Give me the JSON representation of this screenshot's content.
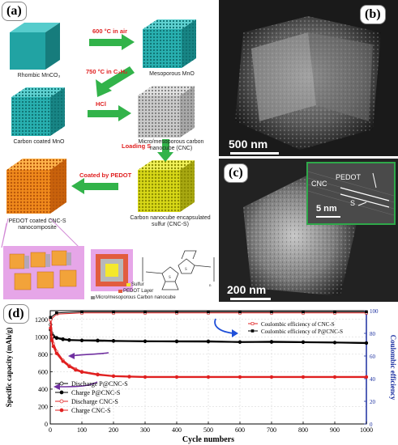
{
  "panels": {
    "a": {
      "label": "(a)",
      "cubes": [
        {
          "label": "Rhombic MnCO₃",
          "color": "#2aa6a6"
        },
        {
          "label": "Mesoporous MnO",
          "color": "#2bb3b3"
        },
        {
          "label": "Carbon coated MnO",
          "color": "#2bb3b3"
        },
        {
          "label": "Micro/mesoporous carbon nanocube (CNC)",
          "color": "#bdbdbd"
        },
        {
          "label": "PEDOT coated CNC-S nanocomposite",
          "color": "#f08a1c"
        },
        {
          "label": "Carbon nanocube encapsulated sulfur (CNC-S)",
          "color": "#d8d818"
        }
      ],
      "steps": [
        "600 °C in air",
        "750 °C in C₂H₂",
        "HCl",
        "Loading S",
        "Coated by PEDOT"
      ],
      "legend": [
        "Sulfur",
        "PEDOT Layer",
        "Micro/mesoporous Carbon nanocube"
      ]
    },
    "b": {
      "label": "(b)",
      "scale": "500 nm"
    },
    "c": {
      "label": "(c)",
      "scale": "200 nm",
      "inset_scale": "5 nm",
      "inset_labels": [
        "CNC",
        "PEDOT",
        "S"
      ]
    },
    "d": {
      "label": "(d)"
    }
  },
  "chart_data": {
    "type": "scatter",
    "xlabel": "Cycle numbers",
    "ylabel": "Specific capacity (mAh/g)",
    "y2label": "Coulombic efficiency",
    "xlim": [
      0,
      1000
    ],
    "ylim": [
      0,
      1300
    ],
    "y2lim": [
      0,
      100
    ],
    "xticks": [
      0,
      100,
      200,
      300,
      400,
      500,
      600,
      700,
      800,
      900,
      1000
    ],
    "yticks": [
      0,
      200,
      400,
      600,
      800,
      1000,
      1200
    ],
    "y2ticks": [
      0,
      20,
      40,
      60,
      80,
      100
    ],
    "legend_left": [
      "Discharge P@CNC-S",
      "Charge P@CNC-S",
      "Discharge CNC-S",
      "Charge CNC-S"
    ],
    "legend_right": [
      "Coulombic efficiency of CNC-S",
      "Coulombic efficiency of P@CNC-S"
    ],
    "series": [
      {
        "name": "Discharge P@CNC-S",
        "color": "#000000",
        "x": [
          1,
          5,
          10,
          20,
          40,
          60,
          100,
          150,
          200,
          300,
          400,
          500,
          600,
          700,
          800,
          900,
          1000
        ],
        "y": [
          1140,
          1040,
          1010,
          990,
          975,
          965,
          960,
          960,
          955,
          950,
          950,
          950,
          940,
          945,
          940,
          935,
          930
        ]
      },
      {
        "name": "Charge P@CNC-S",
        "color": "#000000",
        "x": [
          1,
          5,
          10,
          20,
          40,
          60,
          100,
          150,
          200,
          300,
          400,
          500,
          600,
          700,
          800,
          900,
          1000
        ],
        "y": [
          1080,
          1020,
          1000,
          985,
          970,
          962,
          958,
          955,
          952,
          948,
          946,
          945,
          940,
          940,
          938,
          934,
          928
        ]
      },
      {
        "name": "Discharge CNC-S",
        "color": "#e02020",
        "x": [
          1,
          5,
          10,
          20,
          40,
          60,
          80,
          100,
          150,
          200,
          250,
          300,
          400,
          500,
          600,
          700,
          800,
          900,
          1000
        ],
        "y": [
          1200,
          1000,
          920,
          830,
          730,
          670,
          630,
          600,
          570,
          550,
          545,
          540,
          540,
          540,
          540,
          540,
          540,
          540,
          540
        ]
      },
      {
        "name": "Charge CNC-S",
        "color": "#e02020",
        "x": [
          1,
          5,
          10,
          20,
          40,
          60,
          80,
          100,
          150,
          200,
          250,
          300,
          400,
          500,
          600,
          700,
          800,
          900,
          1000
        ],
        "y": [
          1100,
          960,
          890,
          810,
          720,
          660,
          620,
          595,
          565,
          548,
          542,
          538,
          538,
          538,
          538,
          538,
          538,
          538,
          538
        ]
      },
      {
        "name": "Coulombic efficiency of CNC-S",
        "color": "#e02020",
        "axis": "right",
        "x": [
          1,
          20,
          100,
          200,
          300,
          400,
          500,
          600,
          700,
          800,
          900,
          1000
        ],
        "y": [
          92,
          97,
          98,
          98,
          98,
          98,
          98,
          98,
          98,
          98,
          98,
          98
        ]
      },
      {
        "name": "Coulombic efficiency of P@CNC-S",
        "color": "#000000",
        "axis": "right",
        "x": [
          1,
          20,
          100,
          200,
          300,
          400,
          500,
          600,
          700,
          800,
          900,
          1000
        ],
        "y": [
          94,
          98,
          99,
          99,
          99,
          99,
          99,
          99,
          99,
          99,
          99,
          99
        ]
      }
    ]
  }
}
